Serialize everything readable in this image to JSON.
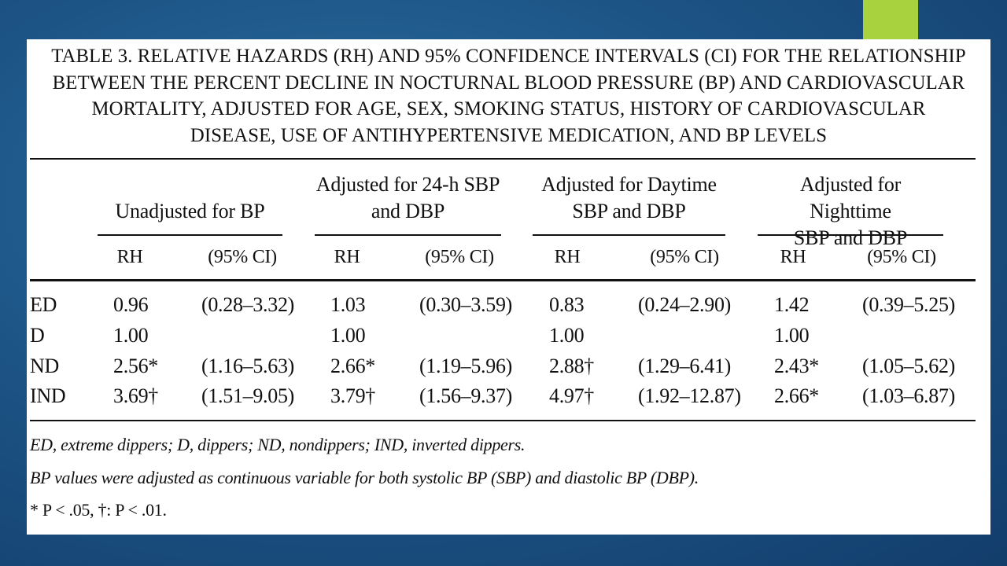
{
  "title_lines": [
    "TABLE 3. RELATIVE HAZARDS (RH) AND 95% CONFIDENCE INTERVALS (CI) FOR THE RELATIONSHIP",
    "BETWEEN THE PERCENT DECLINE IN NOCTURNAL BLOOD PRESSURE (BP) AND CARDIOVASCULAR",
    "MORTALITY, ADJUSTED FOR AGE, SEX, SMOKING STATUS, HISTORY OF CARDIOVASCULAR",
    "DISEASE, USE OF ANTIHYPERTENSIVE MEDICATION, AND BP LEVELS"
  ],
  "groups": [
    {
      "line1": "",
      "line2": "Unadjusted for BP",
      "rh": "RH",
      "ci": "(95% CI)"
    },
    {
      "line1": "Adjusted for 24-h SBP",
      "line2": "and DBP",
      "rh": "RH",
      "ci": "(95% CI)"
    },
    {
      "line1": "Adjusted for Daytime",
      "line2": "SBP and DBP",
      "rh": "RH",
      "ci": "(95% CI)"
    },
    {
      "line1": "Adjusted for Nighttime",
      "line2": "SBP and DBP",
      "rh": "RH",
      "ci": "(95% CI)"
    }
  ],
  "rows": [
    {
      "label": "ED",
      "values": [
        "0.96",
        "(0.28–3.32)",
        "1.03",
        "(0.30–3.59)",
        "0.83",
        "(0.24–2.90)",
        "1.42",
        "(0.39–5.25)"
      ]
    },
    {
      "label": "D",
      "values": [
        "1.00",
        "",
        "1.00",
        "",
        "1.00",
        "",
        "1.00",
        ""
      ]
    },
    {
      "label": "ND",
      "values": [
        "2.56*",
        "(1.16–5.63)",
        "2.66*",
        "(1.19–5.96)",
        "2.88†",
        "(1.29–6.41)",
        "2.43*",
        "(1.05–5.62)"
      ]
    },
    {
      "label": "IND",
      "values": [
        "3.69†",
        "(1.51–9.05)",
        "3.79†",
        "(1.56–9.37)",
        "4.97†",
        "(1.92–12.87)",
        "2.66*",
        "(1.03–6.87)"
      ]
    }
  ],
  "footnotes": [
    "ED, extreme dippers; D, dippers; ND, nondippers; IND, inverted dippers.",
    "BP values were adjusted as continuous variable for both systolic BP (SBP) and diastolic BP (DBP).",
    "* P < .05, †: P < .01."
  ],
  "colors": {
    "background": "#1d5587",
    "accent": "#a9d23f",
    "sheet": "#ffffff"
  }
}
